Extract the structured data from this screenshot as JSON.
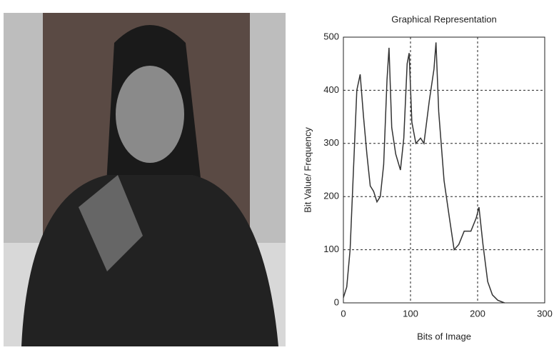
{
  "chart_data": {
    "type": "line",
    "title": "Graphical Representation",
    "x_label": "Bits of Image",
    "y_label": "Bit Value/ Frequency",
    "x": [
      0,
      5,
      10,
      15,
      20,
      25,
      30,
      35,
      40,
      45,
      50,
      55,
      60,
      65,
      68,
      72,
      78,
      85,
      90,
      95,
      98,
      102,
      108,
      115,
      120,
      128,
      135,
      138,
      142,
      150,
      158,
      165,
      172,
      180,
      190,
      198,
      202,
      208,
      215,
      222,
      230,
      240
    ],
    "values": [
      10,
      30,
      100,
      250,
      400,
      430,
      350,
      280,
      220,
      210,
      190,
      200,
      260,
      420,
      480,
      330,
      280,
      250,
      310,
      450,
      470,
      340,
      300,
      310,
      300,
      380,
      440,
      490,
      360,
      230,
      160,
      100,
      110,
      135,
      135,
      160,
      180,
      110,
      40,
      15,
      5,
      0
    ],
    "color": "#333333",
    "xlim": [
      0,
      300
    ],
    "xticks": [
      0,
      100,
      200,
      300
    ],
    "ylim": [
      0,
      500
    ],
    "yticks": [
      0,
      100,
      200,
      300,
      400,
      500
    ],
    "grid": true
  }
}
